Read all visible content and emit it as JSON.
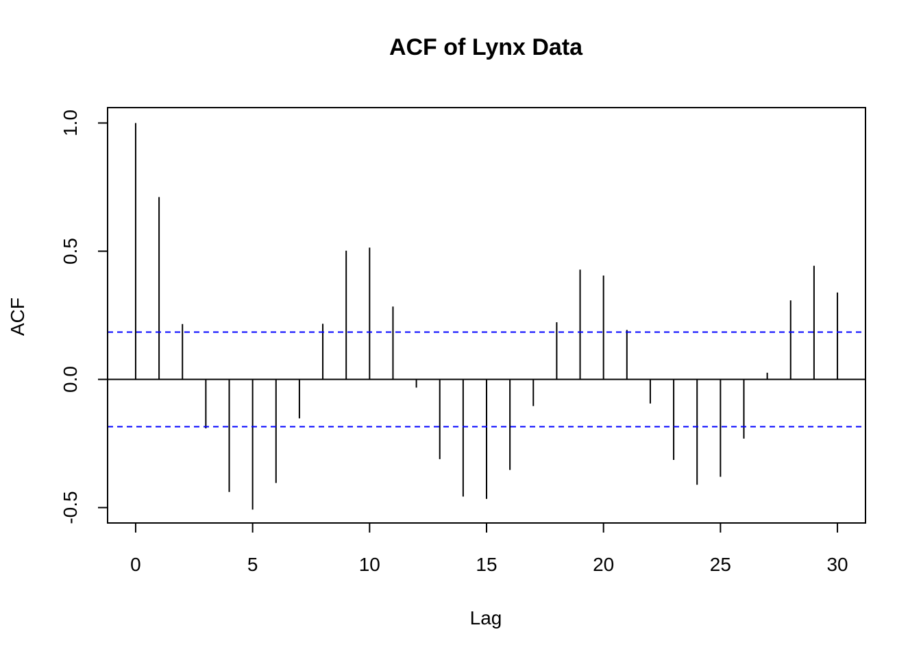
{
  "chart_data": {
    "type": "bar",
    "title": "ACF of Lynx Data",
    "xlabel": "Lag",
    "ylabel": "ACF",
    "xlim": [
      -1.2,
      31.2
    ],
    "ylim": [
      -0.56,
      1.06
    ],
    "x_ticks": [
      0,
      5,
      10,
      15,
      20,
      25,
      30
    ],
    "x_tick_labels": [
      "0",
      "5",
      "10",
      "15",
      "20",
      "25",
      "30"
    ],
    "y_ticks": [
      -0.5,
      0.0,
      0.5,
      1.0
    ],
    "y_tick_labels": [
      "-0.5",
      "0.0",
      "0.5",
      "1.0"
    ],
    "lags": [
      0,
      1,
      2,
      3,
      4,
      5,
      6,
      7,
      8,
      9,
      10,
      11,
      12,
      13,
      14,
      15,
      16,
      17,
      18,
      19,
      20,
      21,
      22,
      23,
      24,
      25,
      26,
      27,
      28,
      29,
      30
    ],
    "values": [
      1.0,
      0.711,
      0.216,
      -0.191,
      -0.439,
      -0.508,
      -0.404,
      -0.152,
      0.217,
      0.502,
      0.514,
      0.284,
      -0.032,
      -0.311,
      -0.457,
      -0.466,
      -0.353,
      -0.104,
      0.223,
      0.428,
      0.405,
      0.193,
      -0.094,
      -0.314,
      -0.411,
      -0.38,
      -0.231,
      0.026,
      0.308,
      0.443,
      0.339
    ],
    "confidence_bound": 0.1844,
    "confidence_line_color": "#0000FF",
    "bar_color": "#000000",
    "grid": false,
    "legend": "none"
  }
}
